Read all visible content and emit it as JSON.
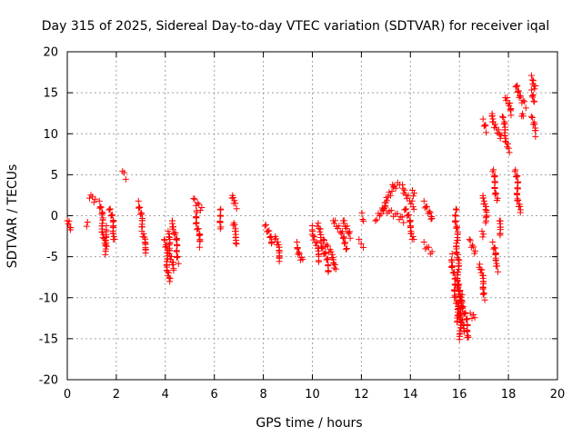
{
  "chart_data": {
    "type": "scatter",
    "title": "Day 315 of 2025, Sidereal Day-to-day VTEC variation (SDTVAR) for receiver iqal",
    "xlabel": "GPS time / hours",
    "ylabel": "SDTVAR / TECUs",
    "xlim": [
      0,
      20
    ],
    "ylim": [
      -20,
      20
    ],
    "xticks": [
      0,
      2,
      4,
      6,
      8,
      10,
      12,
      14,
      16,
      18,
      20
    ],
    "yticks": [
      -20,
      -15,
      -10,
      -5,
      0,
      5,
      10,
      15,
      20
    ],
    "grid": true,
    "marker": "+",
    "color": "#ff0000",
    "segments": [
      {
        "x": [
          0.0,
          0.1
        ],
        "y": [
          -0.5,
          -1.8
        ]
      },
      {
        "x": [
          0.75,
          0.8
        ],
        "y": [
          -1.0,
          -1.1
        ]
      },
      {
        "x": [
          0.95,
          1.12
        ],
        "y": [
          2.5,
          1.8
        ]
      },
      {
        "x": [
          1.35,
          1.55
        ],
        "y": [
          1.5,
          -4.5
        ]
      },
      {
        "x": [
          1.55,
          1.65
        ],
        "y": [
          -1.5,
          -3.5
        ]
      },
      {
        "x": [
          1.75,
          1.95
        ],
        "y": [
          1.0,
          -3.0
        ]
      },
      {
        "x": [
          2.25,
          2.35
        ],
        "y": [
          5.3,
          4.8
        ]
      },
      {
        "x": [
          2.95,
          3.05
        ],
        "y": [
          1.5,
          -1.5
        ]
      },
      {
        "x": [
          3.05,
          3.25
        ],
        "y": [
          -2.0,
          -4.5
        ]
      },
      {
        "x": [
          4.0,
          4.15
        ],
        "y": [
          -3.0,
          -8.0
        ]
      },
      {
        "x": [
          4.1,
          4.3
        ],
        "y": [
          -2.0,
          -6.5
        ]
      },
      {
        "x": [
          4.3,
          4.55
        ],
        "y": [
          -0.5,
          -5.5
        ]
      },
      {
        "x": [
          5.2,
          5.45
        ],
        "y": [
          2.0,
          0.8
        ]
      },
      {
        "x": [
          5.25,
          5.4
        ],
        "y": [
          0.5,
          -3.5
        ]
      },
      {
        "x": [
          6.2,
          6.3
        ],
        "y": [
          1.0,
          -1.5
        ]
      },
      {
        "x": [
          6.7,
          6.95
        ],
        "y": [
          2.5,
          1.2
        ]
      },
      {
        "x": [
          6.75,
          6.95
        ],
        "y": [
          -0.8,
          -3.5
        ]
      },
      {
        "x": [
          8.1,
          8.35
        ],
        "y": [
          -1.2,
          -3.5
        ]
      },
      {
        "x": [
          8.5,
          8.7
        ],
        "y": [
          -2.5,
          -5.5
        ]
      },
      {
        "x": [
          9.35,
          9.6
        ],
        "y": [
          -3.5,
          -5.5
        ]
      },
      {
        "x": [
          10.0,
          10.3
        ],
        "y": [
          -1.5,
          -5.5
        ]
      },
      {
        "x": [
          10.2,
          10.7
        ],
        "y": [
          -1.0,
          -7.0
        ]
      },
      {
        "x": [
          10.5,
          11.0
        ],
        "y": [
          -3.0,
          -6.5
        ]
      },
      {
        "x": [
          10.9,
          11.45
        ],
        "y": [
          -0.5,
          -4.0
        ]
      },
      {
        "x": [
          11.3,
          11.5
        ],
        "y": [
          -0.5,
          -2.5
        ]
      },
      {
        "x": [
          12.0,
          12.1
        ],
        "y": [
          0.0,
          -0.5
        ]
      },
      {
        "x": [
          11.95,
          12.1
        ],
        "y": [
          -3.2,
          -3.6
        ]
      },
      {
        "x": [
          12.6,
          13.3
        ],
        "y": [
          -0.5,
          3.2
        ]
      },
      {
        "x": [
          13.3,
          13.6
        ],
        "y": [
          3.5,
          3.8
        ]
      },
      {
        "x": [
          12.9,
          13.7
        ],
        "y": [
          1.0,
          -0.5
        ]
      },
      {
        "x": [
          13.7,
          14.1
        ],
        "y": [
          3.5,
          1.0
        ]
      },
      {
        "x": [
          14.1,
          14.2
        ],
        "y": [
          3.0,
          2.5
        ]
      },
      {
        "x": [
          13.8,
          14.15
        ],
        "y": [
          1.0,
          -3.0
        ]
      },
      {
        "x": [
          14.6,
          14.85
        ],
        "y": [
          1.5,
          -0.5
        ]
      },
      {
        "x": [
          14.6,
          14.85
        ],
        "y": [
          -3.5,
          -4.5
        ]
      },
      {
        "x": [
          15.7,
          15.95
        ],
        "y": [
          -5.0,
          -13.0
        ]
      },
      {
        "x": [
          15.85,
          16.05
        ],
        "y": [
          1.0,
          -15.0
        ]
      },
      {
        "x": [
          15.95,
          16.15
        ],
        "y": [
          -8.0,
          -14.0
        ]
      },
      {
        "x": [
          16.1,
          16.4
        ],
        "y": [
          -10.0,
          -15.0
        ]
      },
      {
        "x": [
          16.4,
          16.6
        ],
        "y": [
          -12.0,
          -12.5
        ]
      },
      {
        "x": [
          16.45,
          16.6
        ],
        "y": [
          -3.0,
          -4.5
        ]
      },
      {
        "x": [
          16.85,
          17.05
        ],
        "y": [
          -6.0,
          -10.0
        ]
      },
      {
        "x": [
          16.9,
          17.0
        ],
        "y": [
          -2.0,
          -2.5
        ]
      },
      {
        "x": [
          16.95,
          17.05
        ],
        "y": [
          11.5,
          10.5
        ]
      },
      {
        "x": [
          17.0,
          17.1
        ],
        "y": [
          2.5,
          -0.8
        ]
      },
      {
        "x": [
          17.3,
          17.65
        ],
        "y": [
          12.5,
          9.5
        ]
      },
      {
        "x": [
          17.35,
          17.55
        ],
        "y": [
          5.5,
          2.0
        ]
      },
      {
        "x": [
          17.35,
          17.6
        ],
        "y": [
          -3.5,
          -6.5
        ]
      },
      {
        "x": [
          17.6,
          17.7
        ],
        "y": [
          -0.5,
          -2.5
        ]
      },
      {
        "x": [
          17.75,
          18.0
        ],
        "y": [
          12.0,
          8.0
        ]
      },
      {
        "x": [
          17.9,
          18.1
        ],
        "y": [
          14.5,
          12.5
        ]
      },
      {
        "x": [
          18.25,
          18.7
        ],
        "y": [
          16.0,
          13.5
        ]
      },
      {
        "x": [
          18.3,
          18.45
        ],
        "y": [
          5.5,
          0.5
        ]
      },
      {
        "x": [
          18.5,
          18.6
        ],
        "y": [
          12.5,
          12.0
        ]
      },
      {
        "x": [
          18.9,
          19.15
        ],
        "y": [
          16.8,
          15.5
        ]
      },
      {
        "x": [
          18.9,
          19.1
        ],
        "y": [
          15.0,
          14.0
        ]
      },
      {
        "x": [
          18.95,
          19.1
        ],
        "y": [
          12.0,
          10.0
        ]
      }
    ]
  }
}
